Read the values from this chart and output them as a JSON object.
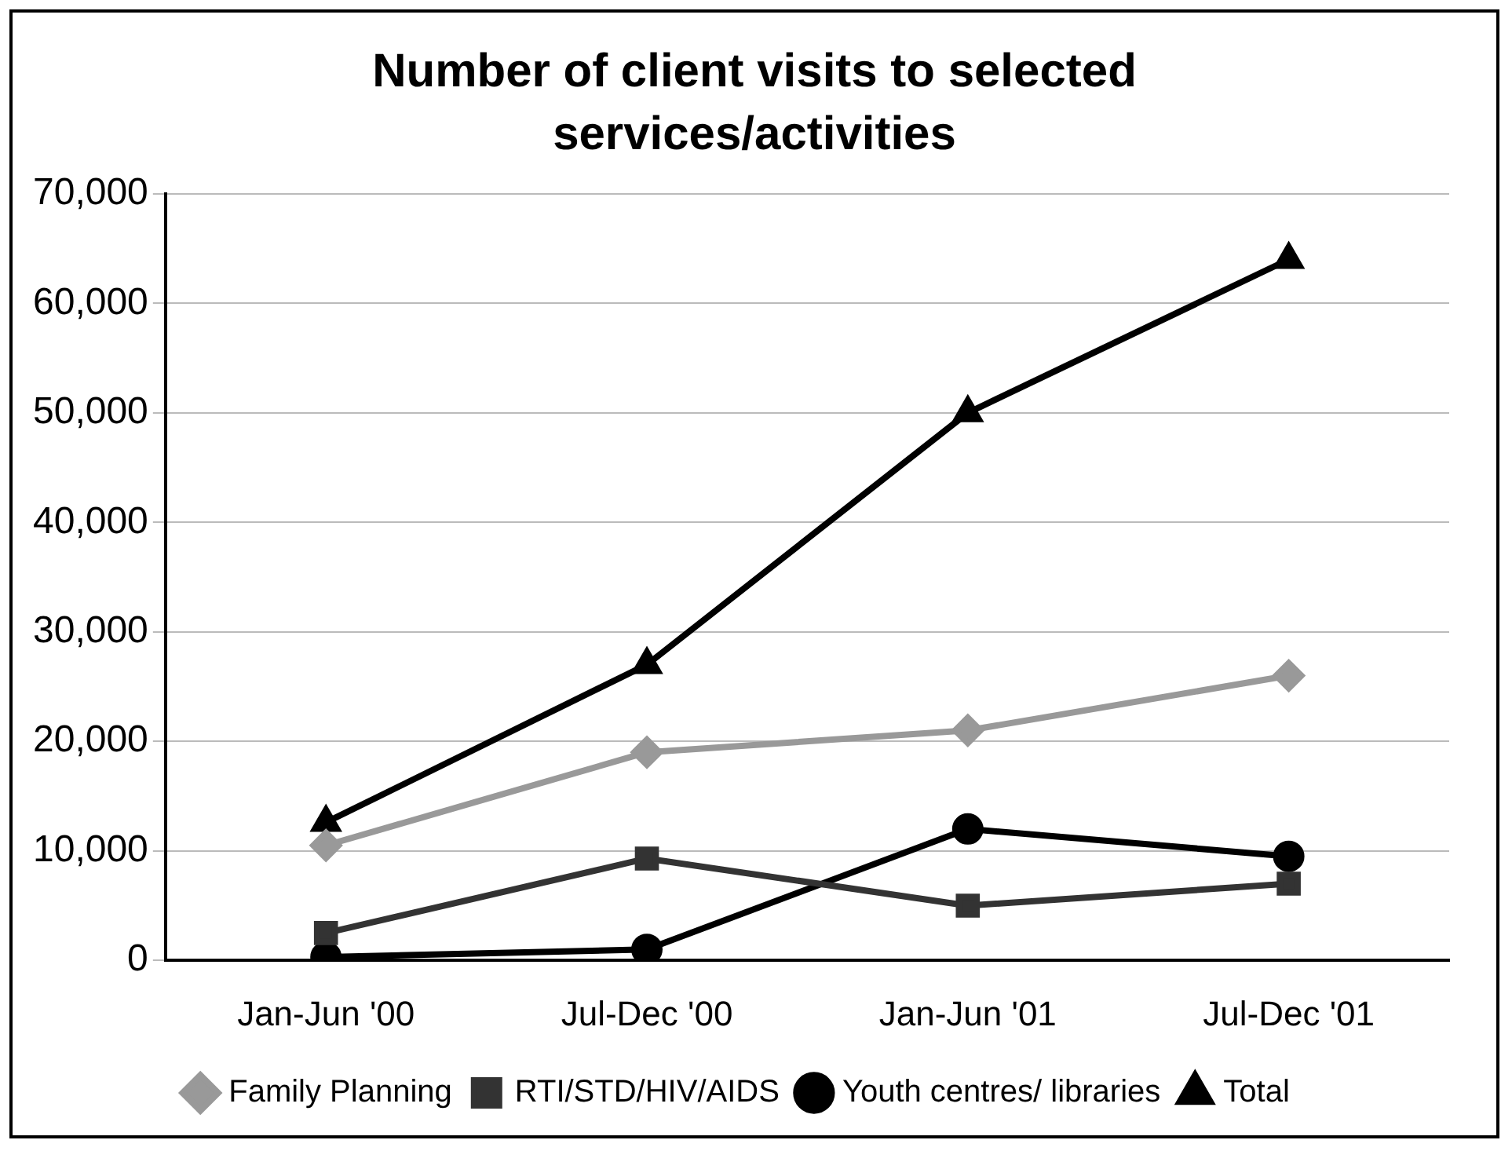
{
  "chart_data": {
    "type": "line",
    "title": "Number of client visits to selected services/activities",
    "categories": [
      "Jan-Jun '00",
      "Jul-Dec '00",
      "Jan-Jun '01",
      "Jul-Dec '01"
    ],
    "series": [
      {
        "name": "Family Planning",
        "color": "#999999",
        "marker": "diamond",
        "values": [
          10500,
          19000,
          21000,
          26000
        ]
      },
      {
        "name": "RTI/STD/HIV/AIDS",
        "color": "#333333",
        "marker": "square",
        "values": [
          2500,
          9300,
          5000,
          7000
        ]
      },
      {
        "name": "Youth centres/ libraries",
        "color": "#000000",
        "marker": "circle",
        "values": [
          300,
          1000,
          12000,
          9500
        ]
      },
      {
        "name": "Total",
        "color": "#000000",
        "marker": "triangle",
        "values": [
          12600,
          27000,
          50000,
          64000
        ]
      }
    ],
    "ylim": [
      0,
      70000
    ],
    "yticks": [
      0,
      {
        "value": 10000,
        "label": "10,000"
      },
      {
        "value": 20000,
        "label": "20,000"
      },
      {
        "value": 30000,
        "label": "30,000"
      },
      {
        "value": 40000,
        "label": "40,000"
      },
      {
        "value": 50000,
        "label": "50,000"
      },
      {
        "value": 60000,
        "label": "60,000"
      },
      {
        "value": 70000,
        "label": "70,000"
      }
    ],
    "grid": "y",
    "legend": "bottom"
  }
}
